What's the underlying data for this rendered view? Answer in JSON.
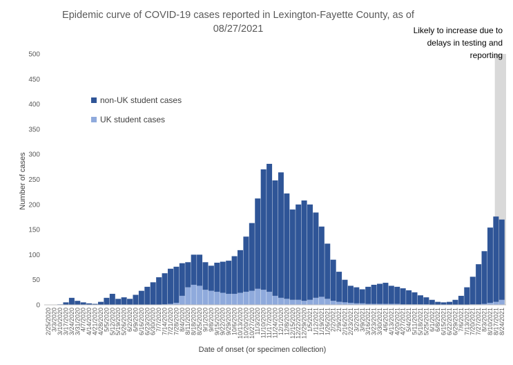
{
  "chart_data": {
    "type": "bar",
    "stacked": true,
    "title": "Epidemic curve of COVID-19 cases reported in Lexington-Fayette County, as of 08/27/2021",
    "title_lines": [
      "Epidemic curve of COVID-19 cases reported in Lexington-Fayette County, as of",
      "08/27/2021"
    ],
    "xlabel": "Date of onset (or specimen collection)",
    "ylabel": "Number of cases",
    "ylim": [
      0,
      500
    ],
    "yticks": [
      0,
      50,
      100,
      150,
      200,
      250,
      300,
      350,
      400,
      450,
      500
    ],
    "grid": false,
    "legend_position": "left-inside",
    "x_tick_labels": [
      "2/25/2020",
      "3/3/2020",
      "3/10/2020",
      "3/17/2020",
      "3/24/2020",
      "3/31/2020",
      "4/7/2020",
      "4/14/2020",
      "4/21/2020",
      "4/28/2020",
      "5/5/2020",
      "5/12/2020",
      "5/19/2020",
      "5/26/2020",
      "6/2/2020",
      "6/9/2020",
      "6/16/2020",
      "6/23/2020",
      "6/30/2020",
      "7/7/2020",
      "7/14/2020",
      "7/21/2020",
      "7/28/2020",
      "8/4/2020",
      "8/11/2020",
      "8/18/2020",
      "8/25/2020",
      "9/1/2020",
      "9/8/2020",
      "9/15/2020",
      "9/22/2020",
      "9/29/2020",
      "10/6/2020",
      "10/13/2020",
      "10/20/2020",
      "10/27/2020",
      "11/3/2020",
      "11/10/2020",
      "11/17/2020",
      "11/24/2020",
      "12/1/2020",
      "12/8/2020",
      "12/15/2020",
      "12/22/2020",
      "12/29/2020",
      "1/5/2021",
      "1/12/2021",
      "1/19/2021",
      "1/26/2021",
      "2/2/2021",
      "2/9/2021",
      "2/16/2021",
      "2/23/2021",
      "3/2/2021",
      "3/9/2021",
      "3/16/2021",
      "3/23/2021",
      "3/30/2021",
      "4/6/2021",
      "4/13/2021",
      "4/20/2021",
      "4/27/2021",
      "5/4/2021",
      "5/11/2021",
      "5/18/2021",
      "5/25/2021",
      "6/1/2021",
      "6/8/2021",
      "6/15/2021",
      "6/22/2021",
      "6/29/2021",
      "7/6/2021",
      "7/13/2021",
      "7/20/2021",
      "7/27/2021",
      "8/3/2021",
      "8/10/2021",
      "8/17/2021",
      "8/24/2021"
    ],
    "categories": [
      "2/25/2020",
      "3/3/2020",
      "3/10/2020",
      "3/17/2020",
      "3/24/2020",
      "3/31/2020",
      "4/7/2020",
      "4/14/2020",
      "4/21/2020",
      "4/28/2020",
      "5/5/2020",
      "5/12/2020",
      "5/19/2020",
      "5/26/2020",
      "6/2/2020",
      "6/9/2020",
      "6/16/2020",
      "6/23/2020",
      "6/30/2020",
      "7/7/2020",
      "7/14/2020",
      "7/21/2020",
      "7/28/2020",
      "8/4/2020",
      "8/11/2020",
      "8/18/2020",
      "8/25/2020",
      "9/1/2020",
      "9/8/2020",
      "9/15/2020",
      "9/22/2020",
      "9/29/2020",
      "10/6/2020",
      "10/13/2020",
      "10/20/2020",
      "10/27/2020",
      "11/3/2020",
      "11/10/2020",
      "11/17/2020",
      "11/24/2020",
      "12/1/2020",
      "12/8/2020",
      "12/15/2020",
      "12/22/2020",
      "12/29/2020",
      "1/5/2021",
      "1/12/2021",
      "1/19/2021",
      "1/26/2021",
      "2/2/2021",
      "2/9/2021",
      "2/16/2021",
      "2/23/2021",
      "3/2/2021",
      "3/9/2021",
      "3/16/2021",
      "3/23/2021",
      "3/30/2021",
      "4/6/2021",
      "4/13/2021",
      "4/20/2021",
      "4/27/2021",
      "5/4/2021",
      "5/11/2021",
      "5/18/2021",
      "5/25/2021",
      "6/1/2021",
      "6/8/2021",
      "6/15/2021",
      "6/22/2021",
      "6/29/2021",
      "7/6/2021",
      "7/13/2021",
      "7/20/2021",
      "7/27/2021",
      "8/3/2021",
      "8/10/2021",
      "8/17/2021",
      "8/24/2021"
    ],
    "series": [
      {
        "name": "non-UK student cases",
        "color": "#2F5597",
        "values": [
          0,
          0,
          1,
          5,
          14,
          8,
          5,
          3,
          2,
          6,
          14,
          22,
          12,
          15,
          12,
          20,
          28,
          36,
          45,
          55,
          62,
          70,
          72,
          65,
          50,
          60,
          62,
          55,
          50,
          58,
          62,
          66,
          75,
          85,
          110,
          135,
          180,
          240,
          255,
          230,
          250,
          210,
          180,
          190,
          200,
          190,
          170,
          140,
          110,
          82,
          60,
          45,
          34,
          32,
          28,
          34,
          38,
          40,
          42,
          36,
          34,
          32,
          28,
          24,
          18,
          14,
          10,
          6,
          5,
          6,
          10,
          18,
          35,
          55,
          80,
          105,
          150,
          170,
          160
        ]
      },
      {
        "name": "UK student cases",
        "color": "#8FAADC",
        "values": [
          0,
          0,
          0,
          0,
          0,
          0,
          0,
          0,
          0,
          0,
          0,
          0,
          0,
          0,
          0,
          0,
          0,
          0,
          0,
          0,
          1,
          2,
          4,
          18,
          35,
          40,
          38,
          30,
          28,
          26,
          24,
          22,
          22,
          24,
          26,
          28,
          32,
          30,
          26,
          18,
          14,
          12,
          10,
          10,
          8,
          10,
          14,
          16,
          12,
          8,
          6,
          5,
          4,
          3,
          3,
          2,
          2,
          2,
          2,
          2,
          2,
          1,
          1,
          1,
          1,
          1,
          0,
          0,
          0,
          0,
          0,
          0,
          0,
          1,
          1,
          2,
          4,
          6,
          10
        ]
      }
    ],
    "legend": {
      "items": [
        {
          "label": "non-UK student cases",
          "color": "#2F5597"
        },
        {
          "label": "UK student cases",
          "color": "#8FAADC"
        }
      ]
    },
    "annotation": {
      "lines": [
        "Likely to increase due to",
        "delays in testing and",
        "reporting"
      ],
      "shade_color": "#D9D9D9",
      "shaded_from": "8/14/2021",
      "shaded_to": "8/27/2021"
    }
  }
}
